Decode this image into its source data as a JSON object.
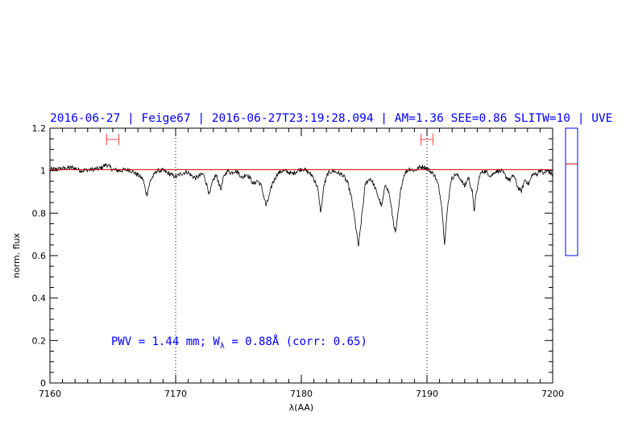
{
  "title": "2016-06-27 | Feige67 | 2016-06-27T23:19:28.094 | AM=1.36  SEE=0.86  SLITW=10 | UVE",
  "annotation": {
    "prefix": "PWV = 1.44 mm; W",
    "sub": "λ",
    "suffix": " = 0.88Å (corr: 0.65)"
  },
  "colors": {
    "spectrum": "#000000",
    "continuum": "#cc0000",
    "text": "#0000ff",
    "markers": "#ff4444",
    "side_panel": "#0000ff",
    "side_marker": "#cc0000"
  },
  "chart_data": {
    "type": "line",
    "xlabel": "λ(AA)",
    "ylabel": "norm. flux",
    "xlim": [
      7160,
      7200
    ],
    "ylim": [
      0,
      1.2
    ],
    "xticks": [
      7160,
      7170,
      7180,
      7190,
      7200
    ],
    "yticks": [
      0,
      0.2,
      0.4,
      0.6,
      0.8,
      1,
      1.2
    ],
    "ytick_labels": [
      "0",
      "0.2",
      "0.4",
      "0.6",
      "0.8",
      "1",
      "1.2"
    ],
    "continuum_level": 1.005,
    "reference_lines": [
      7170,
      7190
    ],
    "markers": [
      7165,
      7190
    ],
    "side_panel": {
      "ylim": [
        0,
        1
      ],
      "value": 0.72
    },
    "series": [
      {
        "values": [
          [
            7160.0,
            1.005
          ],
          [
            7161.0,
            1.01
          ],
          [
            7161.8,
            1.015
          ],
          [
            7162.5,
            1.0
          ],
          [
            7163.3,
            1.005
          ],
          [
            7164.0,
            1.01
          ],
          [
            7164.5,
            1.03
          ],
          [
            7165.0,
            1.005
          ],
          [
            7165.5,
            1.0
          ],
          [
            7166.3,
            1.005
          ],
          [
            7167.0,
            0.98
          ],
          [
            7167.4,
            0.96
          ],
          [
            7167.7,
            0.885
          ],
          [
            7168.0,
            0.955
          ],
          [
            7168.5,
            1.0
          ],
          [
            7169.0,
            1.0
          ],
          [
            7169.5,
            0.985
          ],
          [
            7170.0,
            0.97
          ],
          [
            7170.4,
            0.985
          ],
          [
            7170.9,
            0.995
          ],
          [
            7171.3,
            0.975
          ],
          [
            7171.6,
            0.965
          ],
          [
            7171.9,
            0.975
          ],
          [
            7172.2,
            0.985
          ],
          [
            7172.5,
            0.93
          ],
          [
            7172.7,
            0.885
          ],
          [
            7172.9,
            0.94
          ],
          [
            7173.2,
            0.98
          ],
          [
            7173.4,
            0.95
          ],
          [
            7173.6,
            0.91
          ],
          [
            7173.8,
            0.965
          ],
          [
            7174.1,
            1.0
          ],
          [
            7174.4,
            0.99
          ],
          [
            7174.7,
            1.0
          ],
          [
            7175.0,
            0.99
          ],
          [
            7175.3,
            0.965
          ],
          [
            7175.6,
            0.985
          ],
          [
            7175.9,
            0.97
          ],
          [
            7176.2,
            0.935
          ],
          [
            7176.5,
            0.955
          ],
          [
            7176.8,
            0.93
          ],
          [
            7177.2,
            0.835
          ],
          [
            7177.4,
            0.87
          ],
          [
            7177.7,
            0.94
          ],
          [
            7178.1,
            0.985
          ],
          [
            7178.5,
            1.0
          ],
          [
            7178.9,
            0.995
          ],
          [
            7179.3,
            0.985
          ],
          [
            7179.7,
            1.0
          ],
          [
            7180.1,
            1.01
          ],
          [
            7180.5,
            0.995
          ],
          [
            7180.9,
            0.975
          ],
          [
            7181.3,
            0.92
          ],
          [
            7181.55,
            0.8
          ],
          [
            7181.8,
            0.93
          ],
          [
            7182.1,
            0.985
          ],
          [
            7182.5,
            1.0
          ],
          [
            7182.9,
            0.99
          ],
          [
            7183.3,
            0.98
          ],
          [
            7183.7,
            0.94
          ],
          [
            7184.0,
            0.87
          ],
          [
            7184.3,
            0.75
          ],
          [
            7184.55,
            0.64
          ],
          [
            7184.8,
            0.78
          ],
          [
            7185.1,
            0.94
          ],
          [
            7185.5,
            0.965
          ],
          [
            7185.8,
            0.93
          ],
          [
            7186.1,
            0.88
          ],
          [
            7186.4,
            0.83
          ],
          [
            7186.7,
            0.94
          ],
          [
            7187.0,
            0.89
          ],
          [
            7187.3,
            0.77
          ],
          [
            7187.5,
            0.7
          ],
          [
            7187.7,
            0.8
          ],
          [
            7187.95,
            0.925
          ],
          [
            7188.2,
            0.985
          ],
          [
            7188.6,
            1.01
          ],
          [
            7189.0,
            1.0
          ],
          [
            7189.4,
            1.015
          ],
          [
            7189.7,
            1.02
          ],
          [
            7190.0,
            1.01
          ],
          [
            7190.3,
            0.995
          ],
          [
            7190.6,
            0.98
          ],
          [
            7190.9,
            0.93
          ],
          [
            7191.15,
            0.85
          ],
          [
            7191.4,
            0.66
          ],
          [
            7191.65,
            0.83
          ],
          [
            7191.9,
            0.955
          ],
          [
            7192.3,
            0.985
          ],
          [
            7192.7,
            0.96
          ],
          [
            7193.0,
            0.925
          ],
          [
            7193.3,
            0.97
          ],
          [
            7193.6,
            0.9
          ],
          [
            7193.75,
            0.81
          ],
          [
            7193.9,
            0.88
          ],
          [
            7194.2,
            0.98
          ],
          [
            7194.5,
            1.0
          ],
          [
            7194.8,
            0.99
          ],
          [
            7195.1,
            0.975
          ],
          [
            7195.4,
            0.995
          ],
          [
            7195.7,
            1.0
          ],
          [
            7196.0,
            0.995
          ],
          [
            7196.3,
            0.97
          ],
          [
            7196.6,
            0.955
          ],
          [
            7196.9,
            0.98
          ],
          [
            7197.2,
            0.925
          ],
          [
            7197.5,
            0.9
          ],
          [
            7197.8,
            0.96
          ],
          [
            7198.1,
            0.935
          ],
          [
            7198.4,
            0.985
          ],
          [
            7198.7,
            0.98
          ],
          [
            7199.0,
            1.005
          ],
          [
            7199.3,
            0.985
          ],
          [
            7199.6,
            1.0
          ],
          [
            7200.0,
            0.98
          ]
        ]
      }
    ]
  }
}
